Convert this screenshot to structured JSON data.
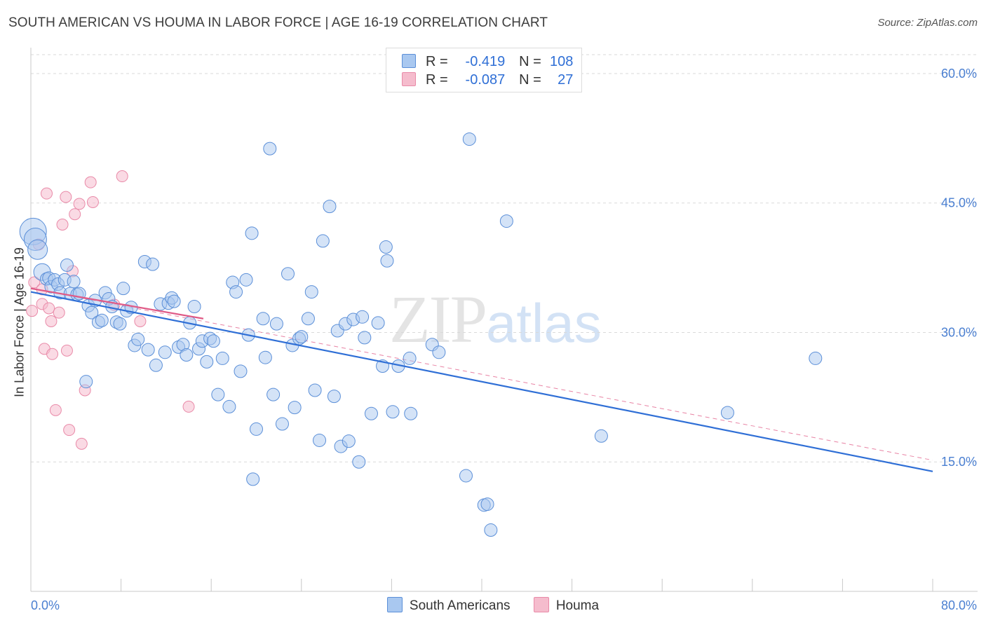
{
  "header": {
    "title": "SOUTH AMERICAN VS HOUMA IN LABOR FORCE | AGE 16-19 CORRELATION CHART",
    "source": "Source: ZipAtlas.com"
  },
  "watermark": {
    "zip": "ZIP",
    "atlas": "atlas"
  },
  "legend": {
    "rows": [
      {
        "r_label": "R =",
        "r_value": "-0.419",
        "n_label": "N =",
        "n_value": "108"
      },
      {
        "r_label": "R =",
        "r_value": "-0.087",
        "n_label": "N =",
        "n_value": "27"
      }
    ]
  },
  "bottom_legend": {
    "series_a": "South Americans",
    "series_b": "Houma"
  },
  "colors": {
    "blue_fill": "#a9c8f0",
    "blue_stroke": "#5b8fd8",
    "blue_line": "#2f6fd6",
    "pink_fill": "#f5bccd",
    "pink_stroke": "#e98aa8",
    "pink_line": "#e05a86",
    "grid": "#d9d9d9",
    "axis_text": "#4a7fd1"
  },
  "chart_data": {
    "type": "scatter",
    "title": "SOUTH AMERICAN VS HOUMA IN LABOR FORCE | AGE 16-19 CORRELATION CHART",
    "xlabel": "",
    "ylabel": "In Labor Force | Age 16-19",
    "xlim": [
      0,
      80
    ],
    "ylim": [
      0,
      63
    ],
    "x_tick_labels": [
      "0.0%",
      "80.0%"
    ],
    "y_ticks": [
      15,
      30,
      45,
      60
    ],
    "y_tick_labels": [
      "15.0%",
      "30.0%",
      "45.0%",
      "60.0%"
    ],
    "grid": true,
    "series": [
      {
        "name": "South Americans",
        "R": -0.419,
        "N": 108,
        "trend": {
          "x0": 0,
          "y0": 34.7,
          "x1": 80,
          "y1": 13.9
        },
        "points": [
          [
            0.2,
            41.7
          ],
          [
            0.4,
            40.8
          ],
          [
            0.6,
            39.6
          ],
          [
            1.0,
            37.0
          ],
          [
            1.4,
            36.2
          ],
          [
            1.6,
            36.3
          ],
          [
            1.8,
            35.3
          ],
          [
            2.1,
            36.1
          ],
          [
            2.4,
            35.6
          ],
          [
            2.6,
            34.6
          ],
          [
            3.0,
            36.1
          ],
          [
            3.2,
            37.8
          ],
          [
            3.5,
            34.5
          ],
          [
            3.8,
            35.9
          ],
          [
            4.1,
            34.4
          ],
          [
            4.3,
            34.5
          ],
          [
            5.1,
            33.1
          ],
          [
            5.4,
            32.3
          ],
          [
            5.7,
            33.7
          ],
          [
            6.0,
            31.2
          ],
          [
            6.3,
            31.4
          ],
          [
            6.6,
            34.6
          ],
          [
            6.9,
            33.9
          ],
          [
            7.2,
            33.0
          ],
          [
            7.6,
            31.2
          ],
          [
            7.9,
            31.0
          ],
          [
            8.2,
            35.1
          ],
          [
            8.5,
            32.5
          ],
          [
            8.9,
            32.9
          ],
          [
            9.2,
            28.5
          ],
          [
            9.5,
            29.2
          ],
          [
            10.1,
            38.2
          ],
          [
            10.4,
            28.0
          ],
          [
            10.8,
            37.9
          ],
          [
            11.1,
            26.2
          ],
          [
            11.5,
            33.3
          ],
          [
            11.9,
            27.7
          ],
          [
            12.2,
            33.4
          ],
          [
            12.5,
            34.0
          ],
          [
            12.7,
            33.6
          ],
          [
            13.1,
            28.3
          ],
          [
            13.5,
            28.6
          ],
          [
            13.8,
            27.4
          ],
          [
            14.1,
            31.1
          ],
          [
            14.5,
            33.0
          ],
          [
            14.9,
            28.1
          ],
          [
            15.2,
            29.0
          ],
          [
            15.6,
            26.6
          ],
          [
            15.9,
            29.3
          ],
          [
            16.2,
            29.0
          ],
          [
            16.6,
            22.8
          ],
          [
            17.0,
            27.0
          ],
          [
            17.6,
            21.4
          ],
          [
            17.9,
            35.8
          ],
          [
            18.2,
            34.7
          ],
          [
            18.6,
            25.5
          ],
          [
            19.1,
            36.1
          ],
          [
            19.3,
            29.7
          ],
          [
            19.6,
            41.5
          ],
          [
            20.0,
            18.8
          ],
          [
            20.6,
            31.6
          ],
          [
            20.8,
            27.1
          ],
          [
            21.2,
            51.3
          ],
          [
            21.5,
            22.8
          ],
          [
            21.8,
            31.0
          ],
          [
            22.3,
            19.4
          ],
          [
            22.8,
            36.8
          ],
          [
            23.2,
            28.5
          ],
          [
            23.4,
            21.3
          ],
          [
            23.8,
            29.3
          ],
          [
            24.0,
            29.5
          ],
          [
            24.6,
            31.6
          ],
          [
            24.9,
            34.7
          ],
          [
            25.2,
            23.3
          ],
          [
            25.6,
            17.5
          ],
          [
            25.9,
            40.6
          ],
          [
            26.5,
            44.6
          ],
          [
            26.9,
            22.6
          ],
          [
            27.2,
            30.2
          ],
          [
            27.5,
            16.8
          ],
          [
            27.9,
            31.0
          ],
          [
            28.2,
            17.4
          ],
          [
            28.6,
            31.5
          ],
          [
            29.1,
            15.0
          ],
          [
            29.4,
            31.8
          ],
          [
            29.6,
            29.4
          ],
          [
            30.2,
            20.6
          ],
          [
            30.8,
            31.1
          ],
          [
            31.2,
            26.1
          ],
          [
            31.5,
            39.9
          ],
          [
            31.6,
            38.3
          ],
          [
            32.1,
            20.8
          ],
          [
            32.6,
            26.1
          ],
          [
            33.6,
            27.0
          ],
          [
            33.7,
            20.6
          ],
          [
            35.6,
            28.6
          ],
          [
            36.2,
            27.7
          ],
          [
            19.7,
            13.0
          ],
          [
            38.6,
            13.4
          ],
          [
            38.9,
            52.4
          ],
          [
            40.2,
            10.0
          ],
          [
            40.5,
            10.1
          ],
          [
            40.8,
            7.1
          ],
          [
            42.2,
            42.9
          ],
          [
            50.6,
            18.0
          ],
          [
            61.8,
            20.7
          ],
          [
            69.6,
            27.0
          ],
          [
            4.9,
            24.3
          ]
        ]
      },
      {
        "name": "Houma",
        "R": -0.087,
        "N": 27,
        "trend": {
          "x0": 0,
          "y0": 35.1,
          "x1": 15.3,
          "y1": 31.6
        },
        "trend_dashed": {
          "x0": 0,
          "y0": 35.1,
          "x1": 80,
          "y1": 15.2
        },
        "points": [
          [
            0.1,
            32.5
          ],
          [
            0.3,
            35.8
          ],
          [
            0.7,
            40.2
          ],
          [
            1.0,
            33.3
          ],
          [
            1.2,
            28.1
          ],
          [
            1.4,
            46.1
          ],
          [
            1.6,
            32.8
          ],
          [
            1.8,
            31.3
          ],
          [
            1.9,
            27.5
          ],
          [
            2.2,
            21.0
          ],
          [
            2.5,
            32.3
          ],
          [
            2.8,
            42.5
          ],
          [
            3.1,
            45.7
          ],
          [
            3.2,
            27.9
          ],
          [
            3.4,
            18.7
          ],
          [
            3.7,
            37.1
          ],
          [
            3.9,
            43.7
          ],
          [
            4.3,
            44.9
          ],
          [
            4.5,
            17.1
          ],
          [
            4.8,
            23.3
          ],
          [
            5.3,
            47.4
          ],
          [
            5.5,
            45.1
          ],
          [
            7.4,
            33.2
          ],
          [
            8.1,
            48.1
          ],
          [
            9.7,
            31.3
          ],
          [
            14.0,
            21.4
          ],
          [
            1.0,
            35.0
          ]
        ]
      }
    ]
  }
}
